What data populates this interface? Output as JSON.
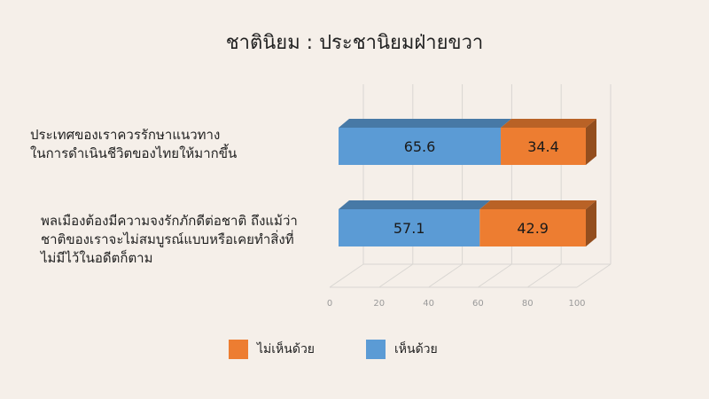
{
  "title": "ชาตินิยม : ประชานิยมฝ่ายขวา",
  "chart_data": {
    "type": "bar",
    "orientation": "horizontal",
    "stacked": true,
    "percent": true,
    "categories": [
      [
        "ประเทศของเราควรรักษาแนวทาง",
        "ในการดำเนินชีวิตของไทยให้มากขึ้น"
      ],
      [
        "พลเมืองต้องมีความจงรักภักดีต่อชาติ ถึงแม้ว่า",
        "ชาติของเราจะไม่สมบูรณ์แบบหรือเคยทำสิ่งที่",
        "ไม่มีไว้ในอดีตก็ตาม"
      ]
    ],
    "series": [
      {
        "name": "เห็นด้วย",
        "values": [
          65.6,
          57.1
        ],
        "color": "#5b9bd5"
      },
      {
        "name": "ไม่เห็นด้วย",
        "values": [
          34.4,
          42.9
        ],
        "color": "#ed7d31"
      }
    ],
    "xlim": [
      0,
      100
    ],
    "xticks": [
      0,
      20,
      40,
      60,
      80,
      100
    ],
    "grid": true,
    "legend_position": "bottom"
  },
  "legend": {
    "disagree": "ไม่เห็นด้วย",
    "agree": "เห็นด้วย"
  }
}
